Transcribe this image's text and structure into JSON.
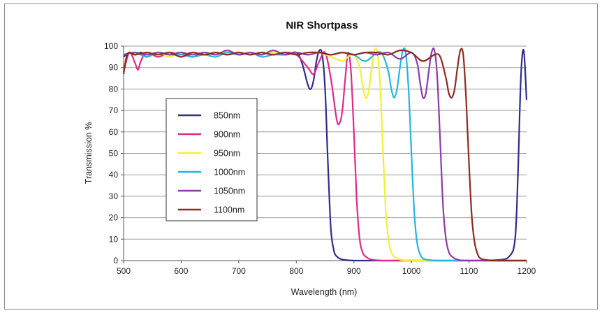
{
  "chart_data": {
    "type": "line",
    "title": "NIR Shortpass",
    "xlabel": "Wavelength (nm)",
    "ylabel": "Transmission %",
    "xlim": [
      500,
      1200
    ],
    "ylim": [
      0,
      100
    ],
    "xticks": [
      500,
      600,
      700,
      800,
      900,
      1000,
      1100,
      1200
    ],
    "yticks": [
      0,
      10,
      20,
      30,
      40,
      50,
      60,
      70,
      80,
      90,
      100
    ],
    "grid": "horizontal",
    "legend_position": "center-left",
    "series": [
      {
        "name": "850nm",
        "color": "#2d2d8c",
        "x": [
          500,
          510,
          520,
          530,
          540,
          560,
          580,
          600,
          620,
          640,
          660,
          680,
          700,
          720,
          740,
          760,
          780,
          800,
          810,
          820,
          825,
          830,
          835,
          840,
          845,
          850,
          855,
          860,
          865,
          870,
          880,
          900,
          950,
          1000,
          1050,
          1100,
          1150,
          1170,
          1180,
          1185,
          1190,
          1195,
          1200
        ],
        "y": [
          95,
          97,
          96,
          97,
          95,
          97,
          96,
          97,
          95,
          97,
          96,
          97,
          96,
          97,
          96,
          97,
          96,
          97,
          92,
          82,
          80,
          84,
          93,
          98,
          96,
          80,
          45,
          15,
          5,
          2,
          0.5,
          0,
          0,
          0,
          0,
          0,
          0.3,
          2,
          10,
          40,
          85,
          98,
          75
        ]
      },
      {
        "name": "900nm",
        "color": "#e0288c",
        "x": [
          500,
          510,
          520,
          525,
          530,
          540,
          560,
          580,
          600,
          620,
          640,
          660,
          680,
          700,
          720,
          740,
          760,
          780,
          800,
          820,
          830,
          840,
          850,
          860,
          870,
          875,
          880,
          885,
          890,
          895,
          900,
          905,
          910,
          915,
          920,
          930,
          950,
          1000,
          1100,
          1200
        ],
        "y": [
          88,
          97,
          92,
          89,
          93,
          97,
          95,
          97,
          96,
          97,
          96,
          97,
          96,
          97,
          96,
          97,
          96,
          97,
          96,
          90,
          87,
          93,
          97,
          85,
          66,
          64,
          70,
          85,
          97,
          88,
          60,
          28,
          10,
          4,
          2,
          0.5,
          0,
          0,
          0,
          0
        ]
      },
      {
        "name": "950nm",
        "color": "#f5ee36",
        "x": [
          500,
          520,
          540,
          560,
          580,
          600,
          620,
          640,
          660,
          680,
          700,
          720,
          740,
          760,
          780,
          800,
          820,
          840,
          860,
          880,
          890,
          900,
          910,
          915,
          920,
          925,
          930,
          935,
          940,
          945,
          950,
          955,
          960,
          965,
          970,
          980,
          1000,
          1100,
          1200
        ],
        "y": [
          96,
          97,
          96,
          97,
          95,
          97,
          96,
          97,
          96,
          97,
          96,
          97,
          96,
          97,
          96,
          97,
          96,
          97,
          95,
          93,
          95,
          96,
          90,
          82,
          76,
          78,
          88,
          97,
          98,
          85,
          55,
          25,
          10,
          4,
          2,
          0.5,
          0,
          0,
          0
        ]
      },
      {
        "name": "1000nm",
        "color": "#27b4e0",
        "x": [
          500,
          520,
          540,
          560,
          580,
          600,
          620,
          640,
          660,
          680,
          700,
          720,
          740,
          760,
          780,
          800,
          820,
          840,
          860,
          880,
          900,
          920,
          940,
          950,
          960,
          965,
          970,
          975,
          980,
          985,
          990,
          995,
          1000,
          1005,
          1010,
          1015,
          1020,
          1030,
          1050,
          1100,
          1200
        ],
        "y": [
          96,
          97,
          95,
          97,
          96,
          96,
          95,
          96,
          95,
          97,
          96,
          97,
          95,
          96,
          96,
          97,
          96,
          97,
          96,
          97,
          96,
          93,
          97,
          96,
          88,
          80,
          76,
          80,
          90,
          98,
          97,
          80,
          50,
          22,
          8,
          3,
          1,
          0.3,
          0,
          0,
          0
        ]
      },
      {
        "name": "1050nm",
        "color": "#8e3aa8",
        "x": [
          500,
          520,
          540,
          560,
          580,
          600,
          620,
          640,
          660,
          680,
          700,
          720,
          740,
          760,
          780,
          800,
          820,
          840,
          860,
          880,
          900,
          920,
          940,
          960,
          980,
          1000,
          1010,
          1015,
          1020,
          1025,
          1030,
          1035,
          1040,
          1045,
          1050,
          1055,
          1060,
          1065,
          1070,
          1080,
          1100,
          1200
        ],
        "y": [
          96,
          97,
          96,
          97,
          96,
          97,
          96,
          97,
          96,
          98,
          96,
          97,
          96,
          98,
          96,
          97,
          96,
          97,
          96,
          97,
          96,
          97,
          96,
          97,
          94,
          97,
          92,
          83,
          76,
          78,
          88,
          97,
          98,
          85,
          55,
          25,
          10,
          4,
          2,
          0.5,
          0,
          0
        ]
      },
      {
        "name": "1100nm",
        "color": "#8c2a20",
        "x": [
          500,
          505,
          510,
          520,
          540,
          560,
          580,
          600,
          620,
          640,
          660,
          680,
          700,
          720,
          740,
          760,
          780,
          800,
          820,
          840,
          860,
          880,
          900,
          920,
          940,
          960,
          980,
          1000,
          1020,
          1040,
          1050,
          1060,
          1065,
          1070,
          1075,
          1080,
          1085,
          1090,
          1095,
          1100,
          1105,
          1110,
          1115,
          1120,
          1130,
          1150,
          1200
        ],
        "y": [
          87,
          95,
          97,
          96,
          97,
          96,
          97,
          95,
          97,
          96,
          97,
          96,
          97,
          96,
          97,
          96,
          97,
          96,
          97,
          97,
          96,
          97,
          96,
          97,
          97,
          96,
          98,
          97,
          93,
          96,
          95,
          85,
          78,
          76,
          80,
          90,
          98,
          96,
          75,
          45,
          20,
          8,
          3,
          1,
          0.3,
          0,
          0
        ]
      }
    ]
  }
}
